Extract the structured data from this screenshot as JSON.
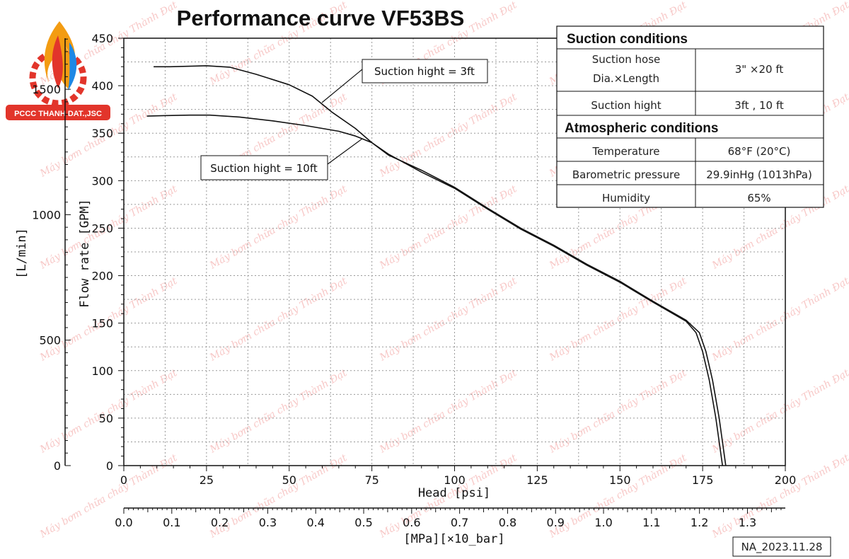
{
  "chart_data": {
    "type": "line",
    "title": "Performance curve VF53BS",
    "xlabel": "Head [psi]",
    "xlabel2": "[MPa][×10_bar]",
    "ylabel": "Flow rate [GPM]",
    "ylabel2": "[L/min]",
    "xlim": [
      0,
      200
    ],
    "ylim": [
      0,
      450
    ],
    "x_ticks": [
      "0",
      "25",
      "50",
      "75",
      "100",
      "125",
      "150",
      "175",
      "200"
    ],
    "y_ticks": [
      "0",
      "50",
      "100",
      "150",
      "200",
      "250",
      "300",
      "350",
      "400",
      "450"
    ],
    "mpa_ticks": [
      "0.0",
      "0.1",
      "0.2",
      "0.3",
      "0.4",
      "0.5",
      "0.6",
      "0.7",
      "0.8",
      "0.9",
      "1.0",
      "1.1",
      "1.2",
      "1.3"
    ],
    "lmin_ticks": [
      "0",
      "500",
      "1000",
      "1500"
    ],
    "grid": true,
    "series": [
      {
        "name": "Suction hight = 3ft",
        "x": [
          9,
          14,
          20,
          25,
          32,
          40,
          50,
          57,
          63,
          70,
          75,
          80,
          90,
          100,
          110,
          120,
          130,
          140,
          150,
          160,
          170,
          174,
          176,
          178,
          180,
          182
        ],
        "y": [
          420,
          420,
          420.5,
          421,
          419.5,
          412,
          401,
          389,
          372,
          355,
          340,
          327,
          311,
          293,
          271,
          250,
          232,
          212,
          194,
          173,
          153,
          140,
          120,
          90,
          50,
          0
        ]
      },
      {
        "name": "Suction hight = 10ft",
        "x": [
          7,
          12,
          20,
          26,
          35,
          45,
          55,
          65,
          70,
          75,
          80,
          90,
          100,
          110,
          120,
          130,
          140,
          150,
          160,
          170,
          173,
          175,
          177,
          179,
          181
        ],
        "y": [
          368,
          368.5,
          369,
          369,
          367,
          363,
          358,
          352,
          347,
          340,
          328,
          309,
          292,
          270,
          249,
          231,
          211,
          193,
          172,
          152,
          140,
          120,
          90,
          50,
          0
        ]
      }
    ],
    "annotations": [
      "Suction hight = 3ft",
      "Suction hight = 10ft"
    ]
  },
  "table": {
    "suction_header": "Suction conditions",
    "hose_label_1": "Suction hose",
    "hose_label_2": "Dia.×Length",
    "hose_value": "3\" ×20 ft",
    "hight_label": "Suction hight",
    "hight_value": "3ft , 10 ft",
    "atmo_header": "Atmospheric conditions",
    "temp_label": "Temperature",
    "temp_value": "68°F (20°C)",
    "baro_label": "Barometric pressure",
    "baro_value": "29.9inHg (1013hPa)",
    "hum_label": "Humidity",
    "hum_value": "65%"
  },
  "logo_text": "PCCC THANH DAT.,JSC",
  "footer_code": "NA_2023.11.28",
  "watermark_text": "Máy bơm chữa cháy Thành Đạt",
  "colors": {
    "curve": "#111111",
    "grid": "#999999",
    "logo_red": "#e2352b",
    "logo_orange": "#f39c12",
    "logo_blue": "#1e88e5",
    "watermark": "#e53935"
  }
}
